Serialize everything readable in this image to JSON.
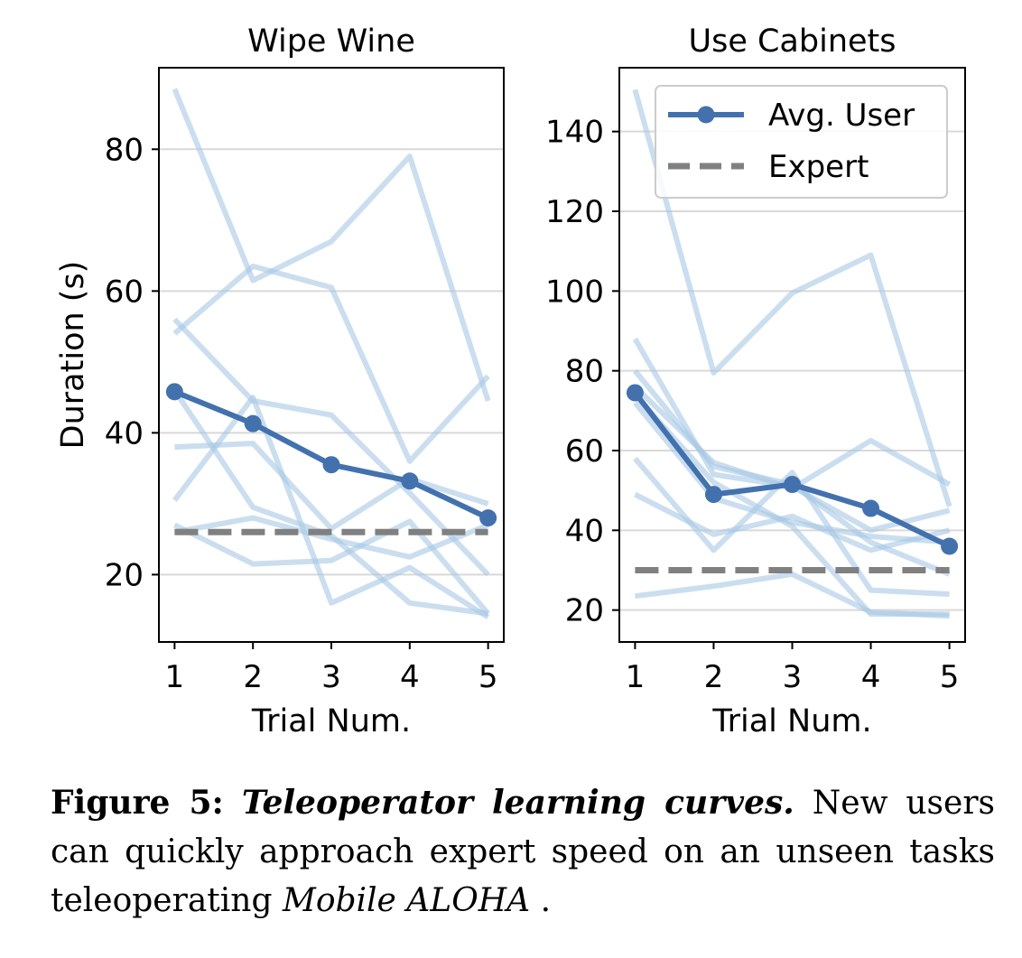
{
  "chart_data": [
    {
      "type": "line",
      "title": "Wipe Wine",
      "xlabel": "Trial Num.",
      "ylabel": "Duration (s)",
      "x": [
        1,
        2,
        3,
        4,
        5
      ],
      "xlim": [
        0.8,
        5.2
      ],
      "ylim": [
        10.5,
        91.5
      ],
      "yticks": [
        20,
        40,
        60,
        80
      ],
      "grid": "horizontal",
      "series": [
        {
          "name": "Avg. User",
          "role": "average",
          "values": [
            45.8,
            41.3,
            35.5,
            33.2,
            28.0
          ]
        },
        {
          "name": "Expert",
          "role": "expert",
          "values": [
            26,
            26,
            26,
            26,
            26
          ]
        },
        {
          "role": "user",
          "values": [
            88.5,
            61.5,
            67.0,
            79.0,
            44.5
          ]
        },
        {
          "role": "user",
          "values": [
            54.0,
            63.5,
            60.5,
            36.0,
            48.0
          ]
        },
        {
          "role": "user",
          "values": [
            56.0,
            44.5,
            42.5,
            31.5,
            20.0
          ]
        },
        {
          "role": "user",
          "values": [
            30.5,
            45.0,
            16.0,
            21.0,
            14.0
          ]
        },
        {
          "role": "user",
          "values": [
            38.0,
            38.5,
            26.5,
            33.5,
            30.0
          ]
        },
        {
          "role": "user",
          "values": [
            46.0,
            29.5,
            25.5,
            16.0,
            14.5
          ]
        },
        {
          "role": "user",
          "values": [
            27.0,
            21.5,
            22.0,
            27.5,
            14.5
          ]
        },
        {
          "role": "user",
          "values": [
            26.0,
            28.0,
            25.0,
            22.5,
            27.0
          ]
        }
      ]
    },
    {
      "type": "line",
      "title": "Use Cabinets",
      "xlabel": "Trial Num.",
      "ylabel": "",
      "x": [
        1,
        2,
        3,
        4,
        5
      ],
      "xlim": [
        0.8,
        5.2
      ],
      "ylim": [
        12,
        156
      ],
      "yticks": [
        20,
        40,
        60,
        80,
        100,
        120,
        140
      ],
      "grid": "horizontal",
      "legend": "top-right",
      "series": [
        {
          "name": "Avg. User",
          "role": "average",
          "values": [
            74.5,
            49.0,
            51.5,
            45.5,
            36.0
          ]
        },
        {
          "name": "Expert",
          "role": "expert",
          "values": [
            30,
            30,
            30,
            30,
            30
          ]
        },
        {
          "role": "user",
          "values": [
            150.5,
            79.5,
            99.5,
            109.0,
            46.0
          ]
        },
        {
          "role": "user",
          "values": [
            88.0,
            54.0,
            51.0,
            40.0,
            45.0
          ]
        },
        {
          "role": "user",
          "values": [
            80.0,
            56.0,
            51.5,
            37.0,
            29.0
          ]
        },
        {
          "role": "user",
          "values": [
            76.0,
            57.0,
            50.5,
            62.5,
            51.5
          ]
        },
        {
          "role": "user",
          "values": [
            58.0,
            35.0,
            54.5,
            25.0,
            24.0
          ]
        },
        {
          "role": "user",
          "values": [
            49.0,
            39.0,
            43.5,
            35.0,
            40.0
          ]
        },
        {
          "role": "user",
          "values": [
            23.5,
            26.0,
            29.0,
            19.5,
            18.5
          ]
        },
        {
          "role": "user",
          "values": [
            72.0,
            48.0,
            42.0,
            38.5,
            37.0
          ]
        },
        {
          "role": "user",
          "values": [
            74.0,
            52.0,
            41.0,
            19.0,
            19.0
          ]
        }
      ]
    }
  ],
  "legend": {
    "avg_label": "Avg. User",
    "expert_label": "Expert"
  },
  "colors": {
    "average": "#4271ae",
    "user": "#a6c8e4",
    "expert": "#808080",
    "grid": "#d9d9d9"
  },
  "caption": {
    "label": "Figure 5:",
    "title": "Teleoperator learning curves.",
    "text_before": " New users can quickly approach expert speed on an unseen tasks teleoperating ",
    "emphasis": "Mobile ALOHA",
    "text_after": " ."
  }
}
